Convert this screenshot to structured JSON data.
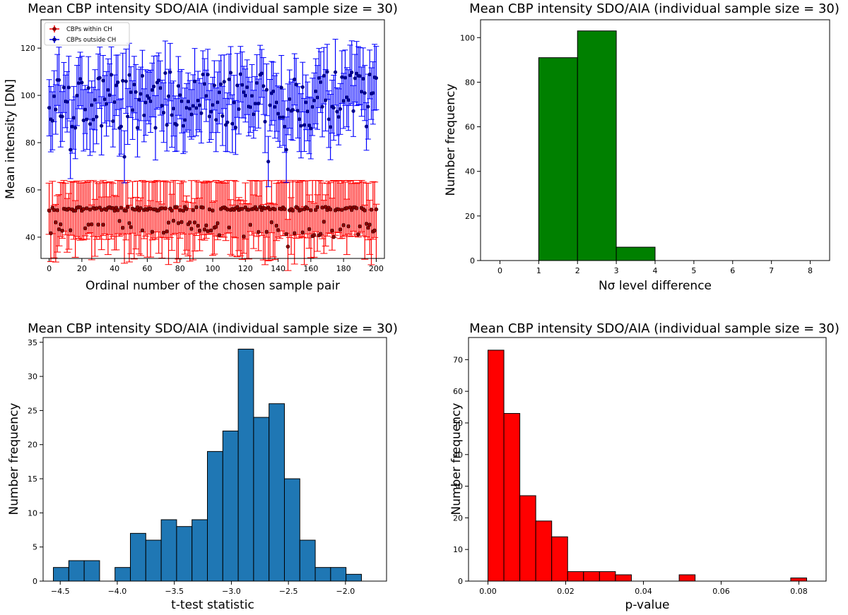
{
  "chart_data": [
    {
      "type": "errorbar",
      "title": "Mean CBP intensity SDO/AIA (individual sample size = 30)",
      "xlabel": "Ordinal number of the chosen sample pair",
      "ylabel": "Mean intensity [DN]",
      "xlim": [
        -5,
        205
      ],
      "ylim": [
        31,
        132
      ],
      "xticks": [
        0,
        20,
        40,
        60,
        80,
        100,
        120,
        140,
        160,
        180,
        200
      ],
      "yticks": [
        40,
        60,
        80,
        100,
        120
      ],
      "legend": [
        "CBPs within CH",
        "CBPs outside CH"
      ],
      "n_points": 201,
      "series": [
        {
          "name": "CBPs within CH",
          "color": "#ff0000",
          "marker_color": "#8b0000",
          "typical_mean": 52,
          "typical_lower": 41,
          "typical_upper": 63,
          "min_mean": 36
        },
        {
          "name": "CBPs outside CH",
          "color": "#0000ff",
          "marker_color": "#00008b",
          "typical_mean": 96,
          "typical_error": 12,
          "min_mean": 72,
          "max_mean": 114
        }
      ]
    },
    {
      "type": "histogram",
      "title": "Mean CBP intensity SDO/AIA (individual sample size = 30)",
      "xlabel": "Nσ level difference",
      "ylabel": "Number frequency",
      "xlim": [
        -0.5,
        8.5
      ],
      "ylim": [
        0,
        108
      ],
      "xticks": [
        0,
        1,
        2,
        3,
        4,
        5,
        6,
        7,
        8
      ],
      "yticks": [
        0,
        20,
        40,
        60,
        80,
        100
      ],
      "color": "#008000",
      "bins": [
        1,
        2,
        3,
        4
      ],
      "values": [
        91,
        103,
        6
      ]
    },
    {
      "type": "histogram",
      "title": "Mean CBP intensity SDO/AIA (individual sample size = 30)",
      "xlabel": "t-test statistic",
      "ylabel": "Number frequency",
      "xlim": [
        -4.65,
        -1.64
      ],
      "ylim": [
        0,
        35.7
      ],
      "xticks": [
        -4.5,
        -4.0,
        -3.5,
        -3.0,
        -2.5,
        -2.0
      ],
      "xticklabels": [
        "−4.5",
        "−4.0",
        "−3.5",
        "−3.0",
        "−2.5",
        "−2.0"
      ],
      "yticks": [
        0,
        5,
        10,
        15,
        20,
        25,
        30,
        35
      ],
      "color": "#1f77b4",
      "bins": [
        -4.56,
        -4.425,
        -4.29,
        -4.155,
        -4.02,
        -3.885,
        -3.75,
        -3.615,
        -3.48,
        -3.345,
        -3.21,
        -3.075,
        -2.94,
        -2.805,
        -2.67,
        -2.535,
        -2.4,
        -2.265,
        -2.13,
        -1.995,
        -1.86,
        -1.725
      ],
      "values": [
        2,
        3,
        3,
        0,
        2,
        7,
        6,
        9,
        8,
        9,
        19,
        22,
        34,
        24,
        26,
        15,
        6,
        2,
        2,
        1,
        0
      ]
    },
    {
      "type": "histogram",
      "title": "Mean CBP intensity SDO/AIA (individual sample size = 30)",
      "xlabel": "p-value",
      "ylabel": "Number frequency",
      "xlim": [
        -0.005,
        0.087
      ],
      "ylim": [
        0,
        77
      ],
      "xticks": [
        0.0,
        0.02,
        0.04,
        0.06,
        0.08
      ],
      "xticklabels": [
        "0.00",
        "0.02",
        "0.04",
        "0.06",
        "0.08"
      ],
      "yticks": [
        0,
        10,
        20,
        30,
        40,
        50,
        60,
        70
      ],
      "color": "#ff0000",
      "bin_width": 0.0041,
      "bin_start": 0.0,
      "values": [
        73,
        53,
        27,
        19,
        14,
        3,
        3,
        3,
        2,
        0,
        0,
        0,
        2,
        0,
        0,
        0,
        0,
        0,
        0,
        1
      ]
    }
  ]
}
